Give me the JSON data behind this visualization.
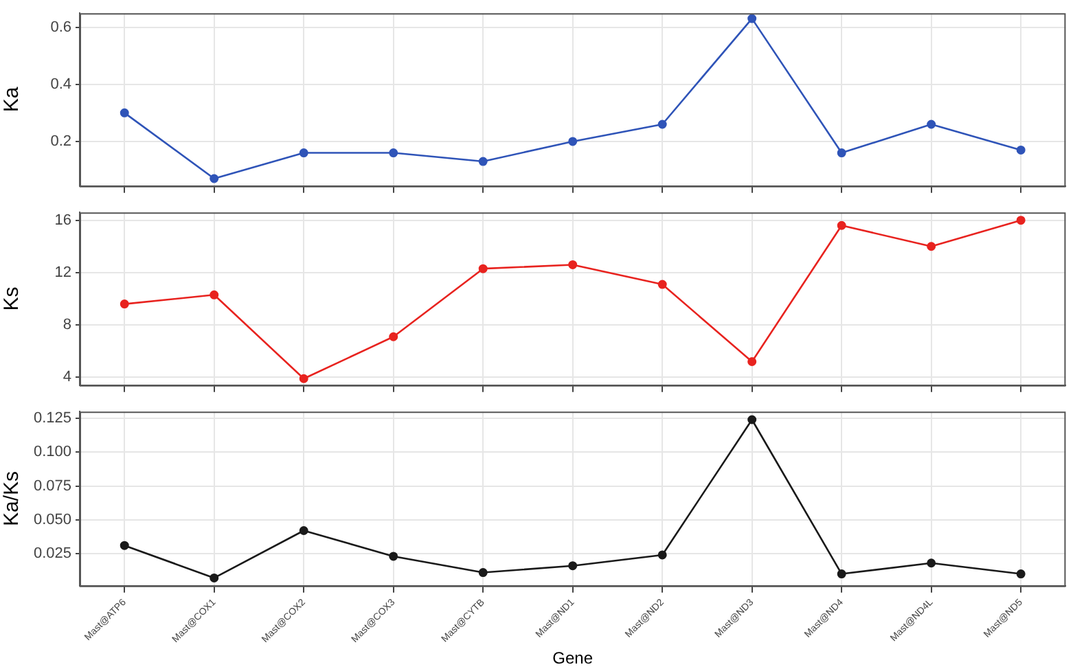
{
  "chart_data": [
    {
      "type": "line",
      "ylabel": "Ka",
      "categories": [
        null,
        null,
        null,
        null,
        null,
        null,
        null,
        null,
        null,
        null,
        null
      ],
      "series": [
        {
          "color": "#2f54b8",
          "values": [
            0.3,
            0.07,
            0.16,
            0.16,
            0.13,
            0.2,
            0.26,
            0.63,
            0.16,
            0.26,
            0.17
          ]
        }
      ],
      "ylim": [
        0.044,
        0.649
      ],
      "yticks": [
        0.2,
        0.4,
        0.6
      ],
      "grid": true,
      "marker": "circle",
      "line_style": "solid",
      "tick_labels": "y"
    },
    {
      "type": "line",
      "ylabel": "Ks",
      "categories": [
        null,
        null,
        null,
        null,
        null,
        null,
        null,
        null,
        null,
        null,
        null
      ],
      "series": [
        {
          "color": "#e8231f",
          "values": [
            9.6,
            10.3,
            3.9,
            7.1,
            12.3,
            12.6,
            11.1,
            5.2,
            15.6,
            14.0,
            16.0
          ]
        }
      ],
      "ylim": [
        3.4,
        16.6
      ],
      "yticks": [
        4,
        8,
        12,
        16
      ],
      "grid": true,
      "marker": "circle",
      "line_style": "solid",
      "tick_labels": "y"
    },
    {
      "type": "line",
      "xlabel": "Gene",
      "ylabel": "Ka/Ks",
      "categories": [
        "Mast@ATP6",
        "Mast@COX1",
        "Mast@COX2",
        "Mast@COX3",
        "Mast@CYTB",
        "Mast@ND1",
        "Mast@ND2",
        "Mast@ND3",
        "Mast@ND4",
        "Mast@ND4L",
        "Mast@ND5"
      ],
      "series": [
        {
          "color": "#1a1a1a",
          "values": [
            0.031,
            0.007,
            0.042,
            0.023,
            0.011,
            0.016,
            0.024,
            0.124,
            0.01,
            0.018,
            0.01
          ]
        }
      ],
      "ylim": [
        0.0012,
        0.13
      ],
      "yticks": [
        {
          "value": 0.025,
          "label": "0.025"
        },
        {
          "value": 0.05,
          "label": "0.050"
        },
        {
          "value": 0.075,
          "label": "0.075"
        },
        {
          "value": 0.1,
          "label": "0.100"
        },
        {
          "value": 0.125,
          "label": "0.125"
        }
      ],
      "grid": true,
      "marker": "circle",
      "line_style": "solid"
    }
  ]
}
